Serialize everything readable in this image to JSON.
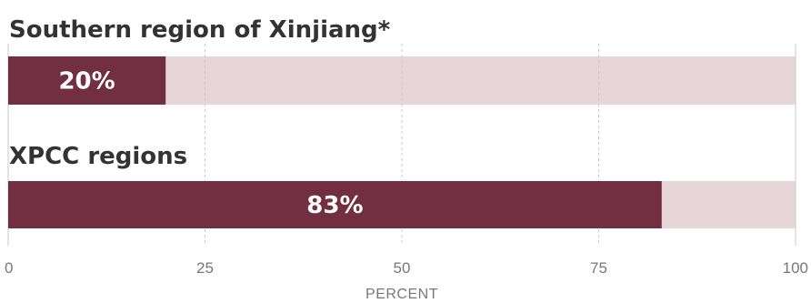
{
  "chart_data": {
    "type": "bar",
    "orientation": "horizontal",
    "categories": [
      "Southern region of Xinjiang*",
      "XPCC regions"
    ],
    "values": [
      20,
      83
    ],
    "value_labels": [
      "20%",
      "83%"
    ],
    "xlabel": "PERCENT",
    "ylabel": "",
    "xlim": [
      0,
      100
    ],
    "ticks": [
      "0",
      "25",
      "50",
      "75",
      "100"
    ],
    "tick_values": [
      0,
      25,
      50,
      75,
      100
    ],
    "grid": true,
    "colors": {
      "bar": "#722f41",
      "track": "#e6d6da",
      "grid": "#c9c9c9",
      "text": "#333333",
      "tick_text": "#777777",
      "value_text": "#ffffff"
    }
  }
}
